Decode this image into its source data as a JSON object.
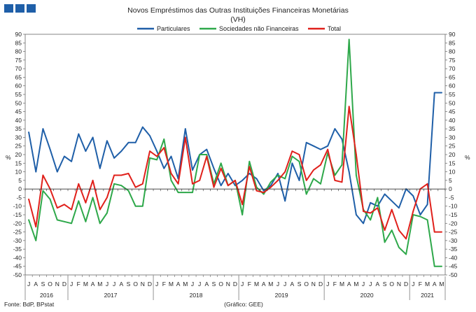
{
  "header": {
    "logo_color": "#1f5fa8"
  },
  "chart_data": {
    "type": "line",
    "title": "Novos Empréstimos das Outras Instituições Financeiras Monetárias",
    "subtitle": "(VH)",
    "ylabel_left": "%",
    "ylabel_right": "%",
    "ylim": [
      -50,
      90
    ],
    "yticks": [
      90,
      85,
      80,
      75,
      70,
      65,
      60,
      55,
      50,
      45,
      40,
      35,
      30,
      25,
      20,
      15,
      10,
      5,
      0,
      -5,
      -10,
      -15,
      -20,
      -25,
      -30,
      -35,
      -40,
      -45,
      -50
    ],
    "x": [
      "J",
      "A",
      "S",
      "O",
      "N",
      "D",
      "J",
      "F",
      "M",
      "A",
      "M",
      "J",
      "J",
      "A",
      "S",
      "O",
      "N",
      "D",
      "J",
      "F",
      "M",
      "A",
      "M",
      "J",
      "J",
      "A",
      "S",
      "O",
      "N",
      "D",
      "J",
      "F",
      "M",
      "A",
      "M",
      "J",
      "J",
      "A",
      "S",
      "O",
      "N",
      "D",
      "J",
      "F",
      "M",
      "A",
      "M",
      "J",
      "J",
      "A",
      "S",
      "O",
      "N",
      "D",
      "J",
      "F",
      "M",
      "A",
      "M"
    ],
    "years": [
      {
        "label": "2016",
        "start": 0,
        "end": 5
      },
      {
        "label": "2017",
        "start": 6,
        "end": 17
      },
      {
        "label": "2018",
        "start": 18,
        "end": 29
      },
      {
        "label": "2019",
        "start": 30,
        "end": 41
      },
      {
        "label": "2020",
        "start": 42,
        "end": 53
      },
      {
        "label": "2021",
        "start": 54,
        "end": 58
      }
    ],
    "legend_position": "top-center",
    "grid": false,
    "series": [
      {
        "name": "Particulares",
        "color": "#1f5fa8",
        "values": [
          33,
          10,
          35,
          23,
          10,
          19,
          16,
          32,
          22,
          30,
          12,
          28,
          18,
          22,
          27,
          27,
          36,
          31,
          22,
          12,
          19,
          6,
          35,
          11,
          20,
          23,
          12,
          2,
          9,
          2,
          5,
          9,
          6,
          -1,
          2,
          9,
          -7,
          15,
          5,
          27,
          25,
          23,
          25,
          35,
          29,
          10,
          -15,
          -20,
          -8,
          -10,
          -3,
          -7,
          -11,
          0,
          -4,
          -15,
          -9,
          56,
          56
        ]
      },
      {
        "name": "Sociedades não Financeiras",
        "color": "#2ea84a",
        "values": [
          -18,
          -30,
          -1,
          -6,
          -18,
          -19,
          -20,
          -7,
          -19,
          -5,
          -20,
          -14,
          3,
          2,
          -1,
          -10,
          -10,
          18,
          17,
          29,
          5,
          -2,
          -2,
          -2,
          20,
          20,
          3,
          15,
          2,
          5,
          -15,
          16,
          1,
          -3,
          4,
          8,
          6,
          19,
          16,
          -3,
          6,
          3,
          21,
          8,
          14,
          87,
          8,
          -12,
          -18,
          -5,
          -31,
          -24,
          -34,
          -38,
          -15,
          -16,
          -18,
          -45,
          -45
        ]
      },
      {
        "name": "Total",
        "color": "#e0201b",
        "values": [
          -6,
          -22,
          8,
          0,
          -11,
          -9,
          -12,
          3,
          -8,
          5,
          -12,
          -5,
          8,
          8,
          9,
          1,
          3,
          22,
          19,
          24,
          9,
          3,
          30,
          3,
          5,
          19,
          1,
          12,
          2,
          5,
          -9,
          13,
          -1,
          -2,
          1,
          5,
          10,
          22,
          20,
          5,
          11,
          14,
          23,
          5,
          4,
          48,
          20,
          -13,
          -14,
          -11,
          -24,
          -12,
          -24,
          -29,
          -13,
          0,
          3,
          -25,
          -25
        ]
      }
    ]
  },
  "footer": {
    "source": "Fonte: BdP, BPstat",
    "credit": "(Gráfico: GEE)"
  }
}
